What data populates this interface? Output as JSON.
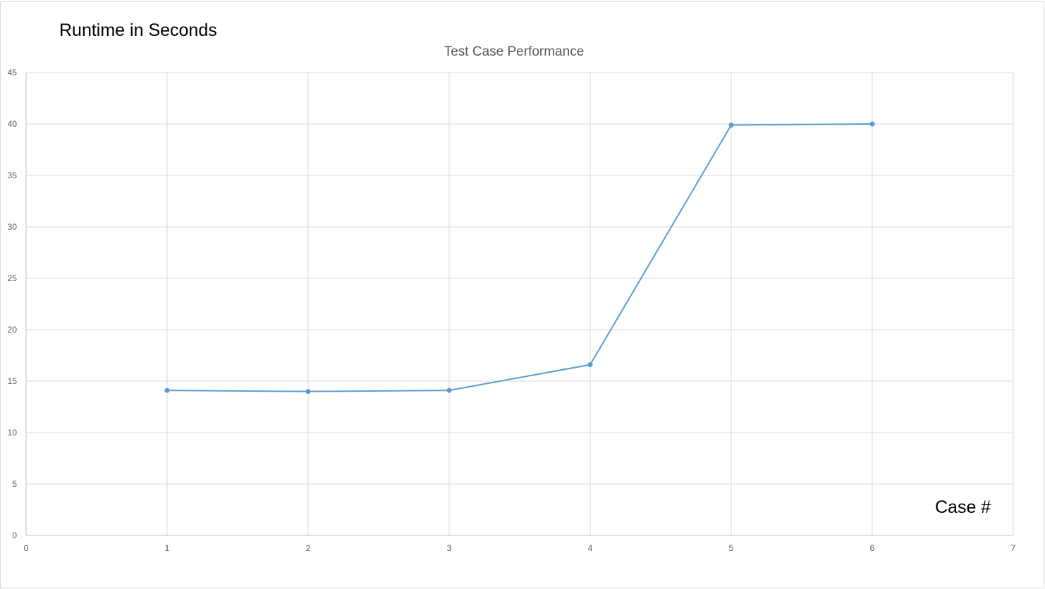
{
  "chart_data": {
    "type": "scatter",
    "title": "Test Case Performance",
    "xlabel": "Case #",
    "ylabel": "Runtime in Seconds",
    "xlim": [
      0,
      7
    ],
    "ylim": [
      0,
      45
    ],
    "x_ticks": [
      0,
      1,
      2,
      3,
      4,
      5,
      6,
      7
    ],
    "y_ticks": [
      0,
      5,
      10,
      15,
      20,
      25,
      30,
      35,
      40,
      45
    ],
    "grid": true,
    "series": [
      {
        "x": [
          1,
          2,
          3,
          4,
          5,
          6
        ],
        "y": [
          14.1,
          14.0,
          14.1,
          16.6,
          39.9,
          40.0
        ],
        "color": "#5b9bd5",
        "marker": "circle",
        "line": "straight"
      }
    ]
  }
}
